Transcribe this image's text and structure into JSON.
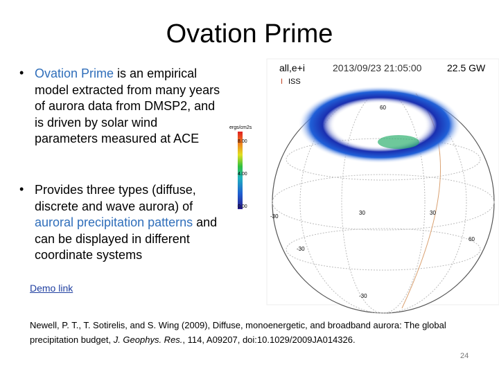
{
  "header": {
    "title": "Ovation Prime"
  },
  "bullets": [
    {
      "parts": [
        "Ovation Prime",
        " is an empirical model extracted from many years of aurora data from DMSP2, and is driven by solar wind parameters measured at ACE"
      ]
    },
    {
      "parts": [
        "Provides three types (diffuse, discrete and wave aurora) of ",
        "auroral precipitation patterns",
        " and can be displayed in different coordinate systems"
      ]
    }
  ],
  "link": "Demo link",
  "reference": {
    "parts": [
      "Newell, P. T., T. Sotirelis, and S. Wing (2009), Diffuse, monoenergetic, and broadband aurora: The global precipitation budget, ",
      "J. Geophys. Res.",
      ", ",
      "114",
      ", A09207, doi:10.1029/2009JA014326."
    ]
  },
  "page_number": "24",
  "figure": {
    "label": "all,e+i",
    "timestamp": "2013/09/23 21:05:00",
    "power": "22.5 GW",
    "legend": "ISS",
    "colorbar": {
      "unit": "ergs/cm2s",
      "labels": [
        "8.00",
        "4.00",
        "0.00"
      ]
    },
    "grid_labels": [
      "60",
      "30",
      "-30",
      "30",
      "-30",
      "60",
      "-30"
    ]
  }
}
